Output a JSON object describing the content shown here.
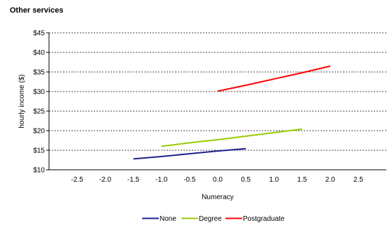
{
  "chart_data": {
    "type": "line",
    "title": "Other services",
    "xlabel": "Numeracy",
    "ylabel": "hourly income ($)",
    "xlim": [
      -3.0,
      3.0
    ],
    "ylim": [
      10,
      45
    ],
    "x_ticks": [
      -2.5,
      -2.0,
      -1.5,
      -1.0,
      -0.5,
      0.0,
      0.5,
      1.0,
      1.5,
      2.0,
      2.5
    ],
    "x_tick_labels": [
      "-2.5",
      "-2.0",
      "-1.5",
      "-1.0",
      "-0.5",
      "0.0",
      "0.5",
      "1.0",
      "1.5",
      "2.0",
      "2.5"
    ],
    "y_ticks": [
      10,
      15,
      20,
      25,
      30,
      35,
      40,
      45
    ],
    "y_tick_labels": [
      "$10",
      "$15",
      "$20",
      "$25",
      "$30",
      "$35",
      "$40",
      "$45"
    ],
    "grid": "horizontal dashed",
    "legend_position": "bottom",
    "series": [
      {
        "name": "None",
        "color": "#1f1f8a",
        "x": [
          -1.5,
          -1.0,
          -0.5,
          0.0,
          0.5
        ],
        "y": [
          12.8,
          13.4,
          14.1,
          14.8,
          15.4
        ]
      },
      {
        "name": "Degree",
        "color": "#99cc00",
        "x": [
          -1.0,
          -0.5,
          0.0,
          0.5,
          1.0,
          1.5
        ],
        "y": [
          16.0,
          16.9,
          17.7,
          18.6,
          19.5,
          20.4
        ]
      },
      {
        "name": "Postgraduate",
        "color": "#ff0000",
        "x": [
          0.0,
          0.5,
          1.0,
          1.5,
          2.0
        ],
        "y": [
          30.1,
          31.6,
          33.2,
          34.8,
          36.5
        ]
      }
    ]
  }
}
